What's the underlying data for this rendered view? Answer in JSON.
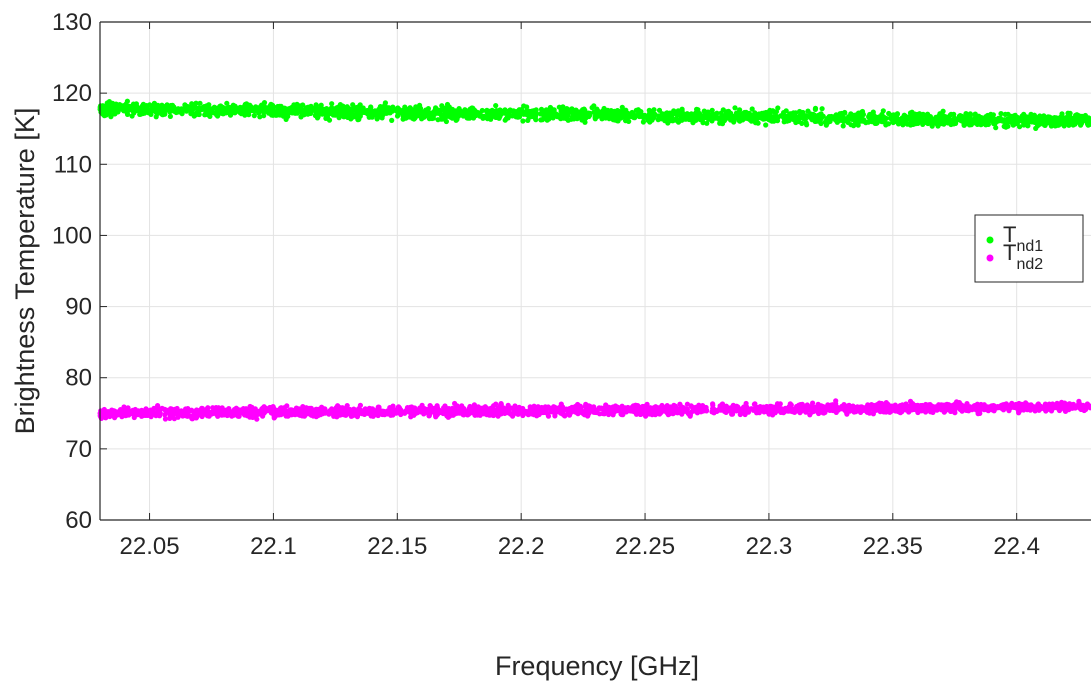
{
  "chart_data": {
    "type": "scatter",
    "title": "",
    "xlabel": "Frequency [GHz]",
    "ylabel": "Brightness Temperature [K]",
    "xlim": [
      22.03,
      22.43
    ],
    "ylim": [
      60,
      130
    ],
    "grid": true,
    "xticks": [
      "22.05",
      "22.1",
      "22.15",
      "22.2",
      "22.25",
      "22.3",
      "22.35",
      "22.4"
    ],
    "xtick_values": [
      22.05,
      22.1,
      22.15,
      22.2,
      22.25,
      22.3,
      22.35,
      22.4
    ],
    "yticks": [
      "60",
      "70",
      "80",
      "90",
      "100",
      "110",
      "120",
      "130"
    ],
    "ytick_values": [
      60,
      70,
      80,
      90,
      100,
      110,
      120,
      130
    ],
    "legend_position": "right",
    "series": [
      {
        "name": "T",
        "name_sub": "nd1",
        "color": "#00ff00",
        "x": [
          22.03,
          22.43
        ],
        "y": [
          117.8,
          116.1
        ],
        "noise": 0.9
      },
      {
        "name": "T",
        "name_sub": "nd2",
        "color": "#ff00ff",
        "x": [
          22.03,
          22.43
        ],
        "y": [
          75.0,
          75.9
        ],
        "noise": 0.7
      }
    ]
  }
}
